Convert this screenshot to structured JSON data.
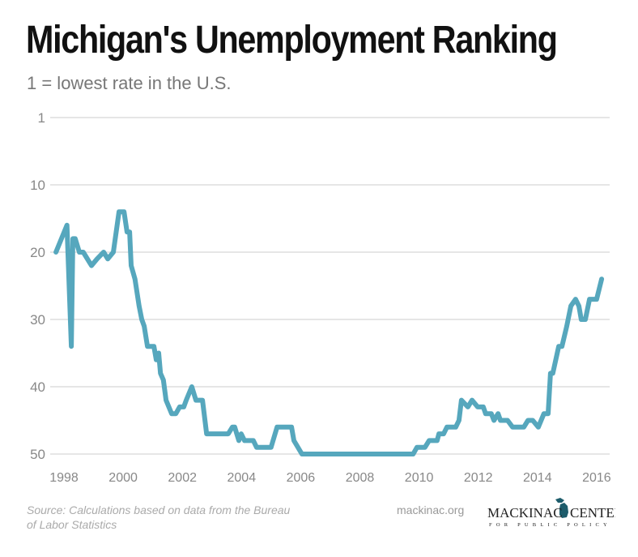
{
  "chart_data": {
    "type": "line",
    "title": "Michigan's Unemployment Ranking",
    "subtitle": "1 = lowest rate in the U.S.",
    "xlabel": "",
    "ylabel": "",
    "y_inverted": true,
    "ylim": [
      0,
      50
    ],
    "xlim": [
      1997.6,
      2016.4
    ],
    "yticks": [
      1,
      10,
      20,
      30,
      40,
      50
    ],
    "xticks": [
      1998,
      2000,
      2002,
      2004,
      2006,
      2008,
      2010,
      2012,
      2014,
      2016
    ],
    "grid": "horizontal",
    "line_color": "#56a7bd",
    "grid_color": "#cccccc",
    "series": [
      {
        "points": [
          [
            1997.73,
            20
          ],
          [
            1998.1,
            16
          ],
          [
            1998.25,
            34
          ],
          [
            1998.3,
            18
          ],
          [
            1998.38,
            18
          ],
          [
            1998.52,
            20
          ],
          [
            1998.65,
            20
          ],
          [
            1998.93,
            22
          ],
          [
            1999.12,
            21
          ],
          [
            1999.34,
            20
          ],
          [
            1999.48,
            21
          ],
          [
            1999.67,
            20
          ],
          [
            1999.86,
            14
          ],
          [
            2000.03,
            14
          ],
          [
            2000.13,
            17
          ],
          [
            2000.22,
            17
          ],
          [
            2000.27,
            22
          ],
          [
            2000.4,
            24
          ],
          [
            2000.54,
            28
          ],
          [
            2000.63,
            30
          ],
          [
            2000.71,
            31
          ],
          [
            2000.82,
            34
          ],
          [
            2001.04,
            34
          ],
          [
            2001.12,
            36
          ],
          [
            2001.2,
            35
          ],
          [
            2001.26,
            38
          ],
          [
            2001.36,
            39
          ],
          [
            2001.45,
            42
          ],
          [
            2001.64,
            44
          ],
          [
            2001.78,
            44
          ],
          [
            2001.91,
            43
          ],
          [
            2002.05,
            43
          ],
          [
            2002.13,
            42
          ],
          [
            2002.32,
            40
          ],
          [
            2002.46,
            42
          ],
          [
            2002.68,
            42
          ],
          [
            2002.82,
            47
          ],
          [
            2003.55,
            47
          ],
          [
            2003.69,
            46
          ],
          [
            2003.77,
            46
          ],
          [
            2003.91,
            48
          ],
          [
            2003.99,
            47
          ],
          [
            2004.1,
            48
          ],
          [
            2004.4,
            48
          ],
          [
            2004.51,
            49
          ],
          [
            2005.0,
            49
          ],
          [
            2005.2,
            46
          ],
          [
            2005.69,
            46
          ],
          [
            2005.77,
            48
          ],
          [
            2006.04,
            50
          ],
          [
            2009.8,
            50
          ],
          [
            2009.93,
            49
          ],
          [
            2010.2,
            49
          ],
          [
            2010.34,
            48
          ],
          [
            2010.61,
            48
          ],
          [
            2010.67,
            47
          ],
          [
            2010.83,
            47
          ],
          [
            2010.94,
            46
          ],
          [
            2011.24,
            46
          ],
          [
            2011.35,
            45
          ],
          [
            2011.43,
            42
          ],
          [
            2011.65,
            43
          ],
          [
            2011.79,
            42
          ],
          [
            2011.98,
            43
          ],
          [
            2012.17,
            43
          ],
          [
            2012.25,
            44
          ],
          [
            2012.44,
            44
          ],
          [
            2012.53,
            45
          ],
          [
            2012.67,
            44
          ],
          [
            2012.75,
            45
          ],
          [
            2012.99,
            45
          ],
          [
            2013.16,
            46
          ],
          [
            2013.54,
            46
          ],
          [
            2013.68,
            45
          ],
          [
            2013.84,
            45
          ],
          [
            2014.03,
            46
          ],
          [
            2014.22,
            44
          ],
          [
            2014.36,
            44
          ],
          [
            2014.44,
            38
          ],
          [
            2014.52,
            38
          ],
          [
            2014.72,
            34
          ],
          [
            2014.83,
            34
          ],
          [
            2014.99,
            31
          ],
          [
            2015.13,
            28
          ],
          [
            2015.29,
            27
          ],
          [
            2015.4,
            28
          ],
          [
            2015.48,
            30
          ],
          [
            2015.62,
            30
          ],
          [
            2015.76,
            27
          ],
          [
            2015.89,
            27
          ],
          [
            2016.0,
            27
          ],
          [
            2016.17,
            24
          ]
        ]
      }
    ]
  },
  "footer": {
    "source_line1": "Source: Calculations based on data from the Bureau",
    "source_line2": "of Labor Statistics",
    "site": "mackinac.org"
  },
  "logo": {
    "name": "MACKINAC CENTER",
    "tagline": "FOR PUBLIC POLICY",
    "color": "#1d5c6b"
  }
}
